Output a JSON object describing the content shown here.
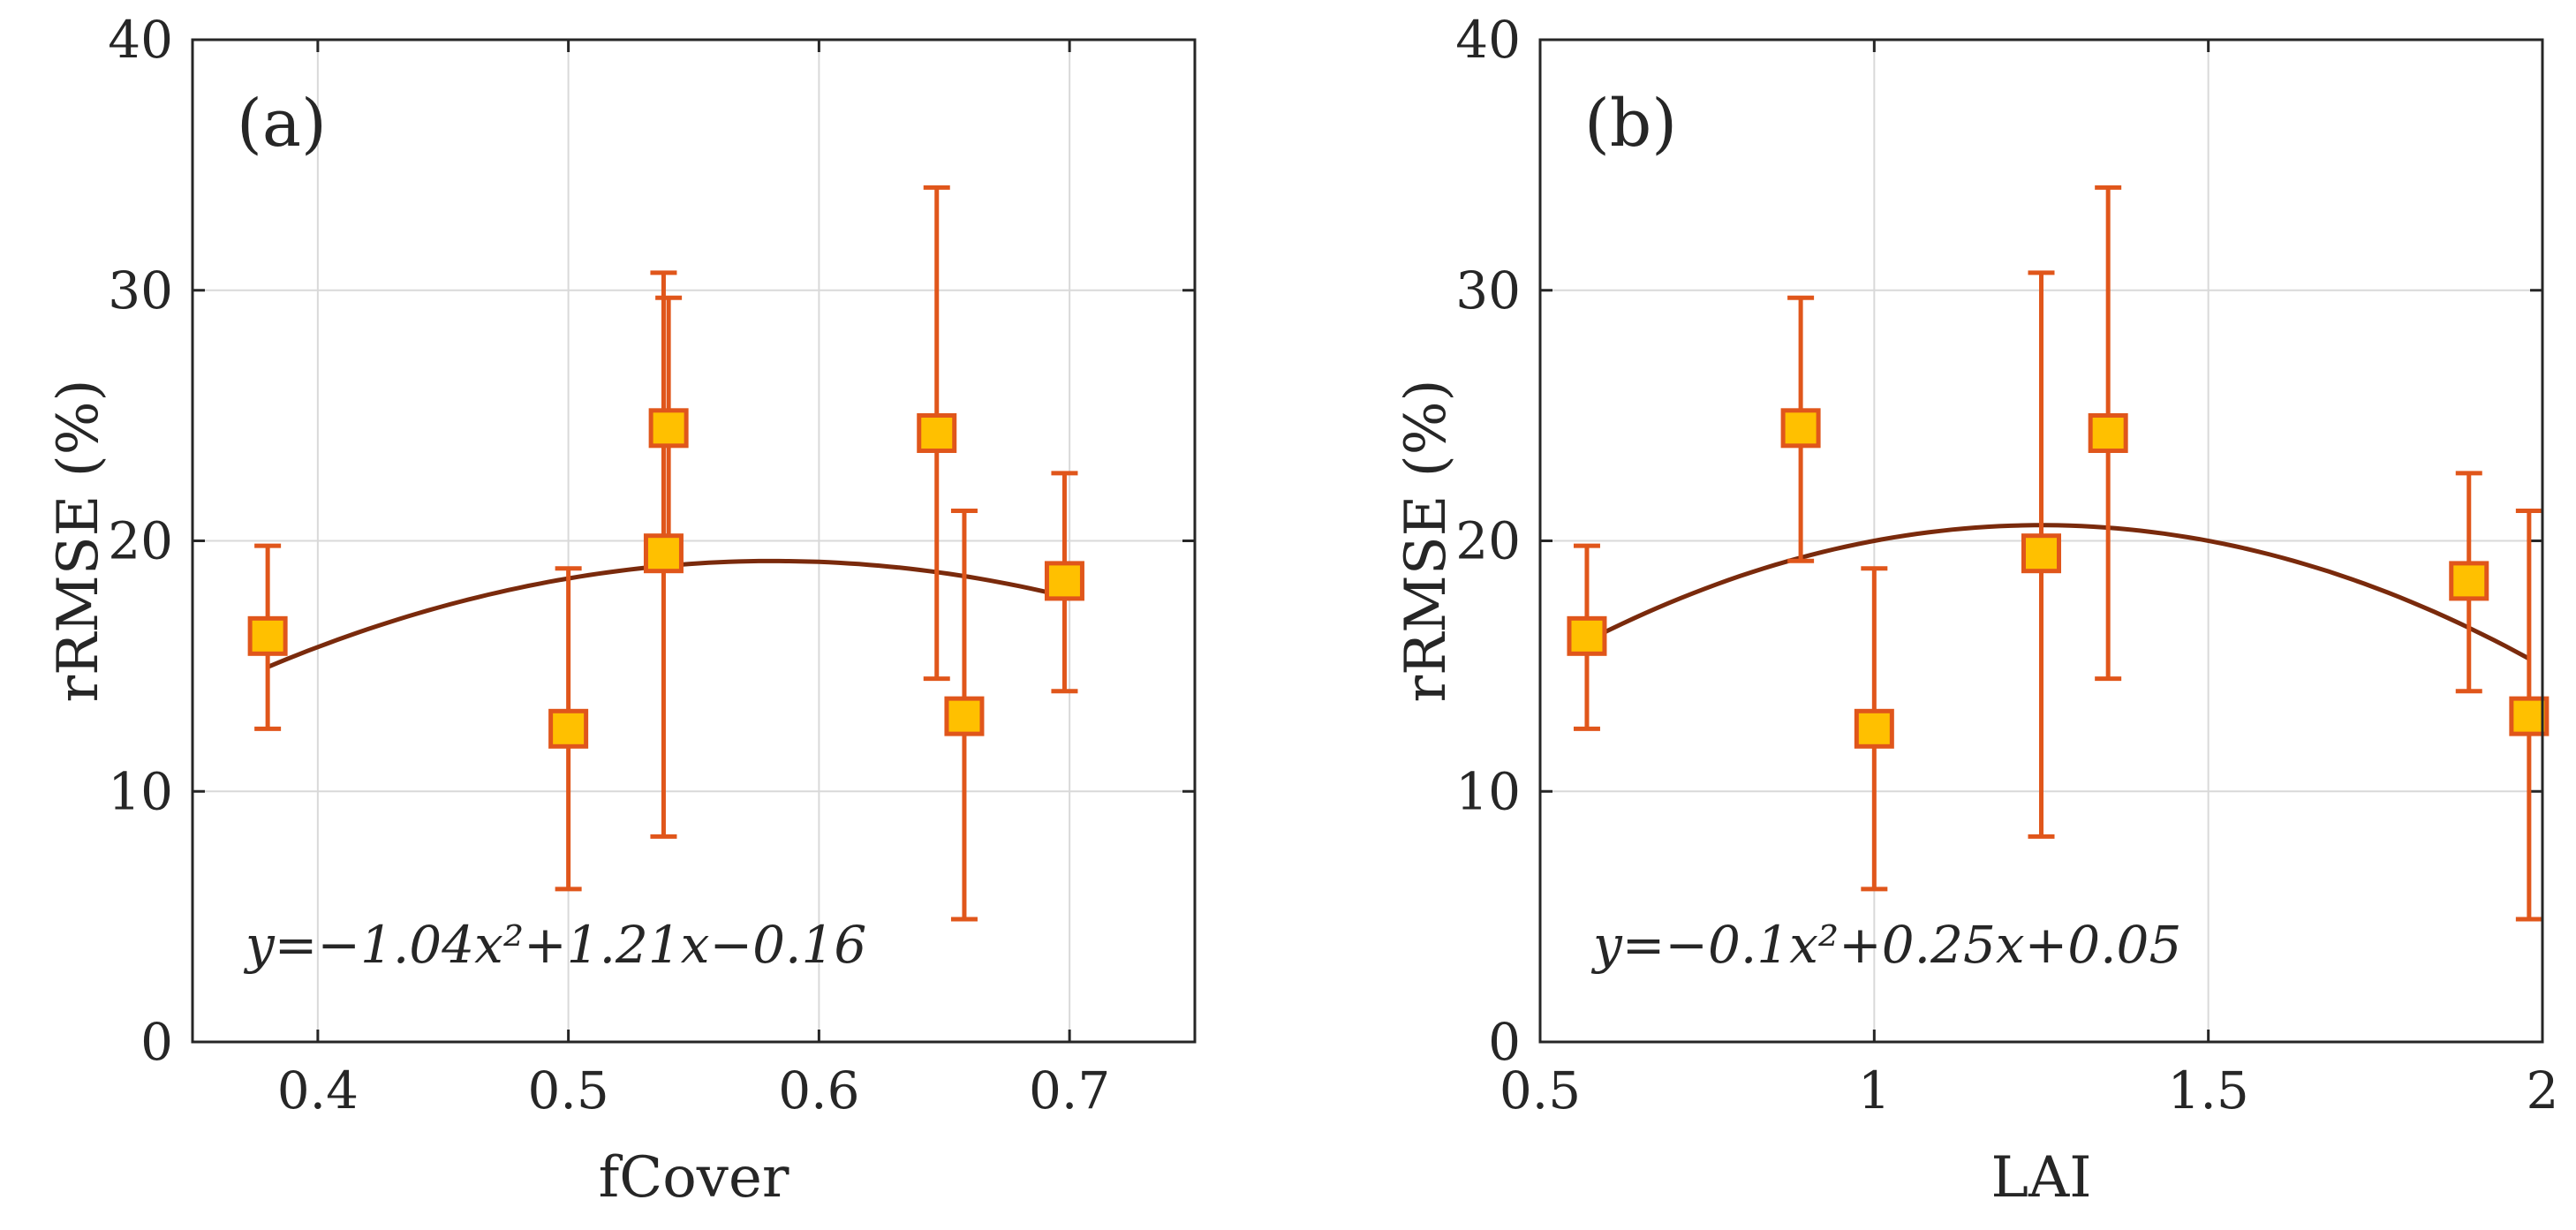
{
  "colors": {
    "marker_fill": "#FFC000",
    "marker_edge": "#E0561B",
    "error_bar": "#E0561B",
    "fit_line": "#7A2A0C",
    "grid": "#D9D9D9",
    "axis": "#262626"
  },
  "chart_data": [
    {
      "type": "scatter",
      "panel_label": "(a)",
      "xlabel": "fCover",
      "ylabel": "rRMSE (%)",
      "xlim": [
        0.35,
        0.75
      ],
      "ylim": [
        0,
        40
      ],
      "xticks": [
        0.4,
        0.5,
        0.6,
        0.7
      ],
      "xtick_labels": [
        "0.4",
        "0.5",
        "0.6",
        "0.7"
      ],
      "yticks": [
        0,
        10,
        20,
        30,
        40
      ],
      "ytick_labels": [
        "0",
        "10",
        "20",
        "30",
        "40"
      ],
      "grid": true,
      "points": [
        {
          "x": 0.38,
          "y": 16.2,
          "low": 12.5,
          "high": 19.8
        },
        {
          "x": 0.5,
          "y": 12.5,
          "low": 6.1,
          "high": 18.9
        },
        {
          "x": 0.54,
          "y": 24.5,
          "low": 19.2,
          "high": 29.7
        },
        {
          "x": 0.538,
          "y": 19.5,
          "low": 8.2,
          "high": 30.7
        },
        {
          "x": 0.647,
          "y": 24.3,
          "low": 14.5,
          "high": 34.1
        },
        {
          "x": 0.658,
          "y": 13.0,
          "low": 4.9,
          "high": 21.2
        },
        {
          "x": 0.698,
          "y": 18.4,
          "low": 14.0,
          "high": 22.7
        }
      ],
      "fit": {
        "equation": "y=−1.04x²+1.21x−0.16",
        "coefficients": [
          -1.04,
          1.21,
          -0.16
        ],
        "x_range": [
          0.38,
          0.7
        ],
        "y_scale": 100
      }
    },
    {
      "type": "scatter",
      "panel_label": "(b)",
      "xlabel": "LAI",
      "ylabel": "rRMSE (%)",
      "xlim": [
        0.5,
        2.0
      ],
      "ylim": [
        0,
        40
      ],
      "xticks": [
        0.5,
        1,
        1.5,
        2
      ],
      "xtick_labels": [
        "0.5",
        "1",
        "1.5",
        "2"
      ],
      "yticks": [
        0,
        10,
        20,
        30,
        40
      ],
      "ytick_labels": [
        "0",
        "10",
        "20",
        "30",
        "40"
      ],
      "grid": true,
      "points": [
        {
          "x": 0.57,
          "y": 16.2,
          "low": 12.5,
          "high": 19.8
        },
        {
          "x": 0.89,
          "y": 24.5,
          "low": 19.2,
          "high": 29.7
        },
        {
          "x": 1.0,
          "y": 12.5,
          "low": 6.1,
          "high": 18.9
        },
        {
          "x": 1.25,
          "y": 19.5,
          "low": 8.2,
          "high": 30.7
        },
        {
          "x": 1.35,
          "y": 24.3,
          "low": 14.5,
          "high": 34.1
        },
        {
          "x": 1.89,
          "y": 18.4,
          "low": 14.0,
          "high": 22.7
        },
        {
          "x": 1.98,
          "y": 13.0,
          "low": 4.9,
          "high": 21.2
        }
      ],
      "fit": {
        "equation": "y=−0.1x²+0.25x+0.05",
        "coefficients": [
          -0.1,
          0.25,
          0.05
        ],
        "x_range": [
          0.57,
          1.98
        ],
        "y_scale": 100
      }
    }
  ]
}
